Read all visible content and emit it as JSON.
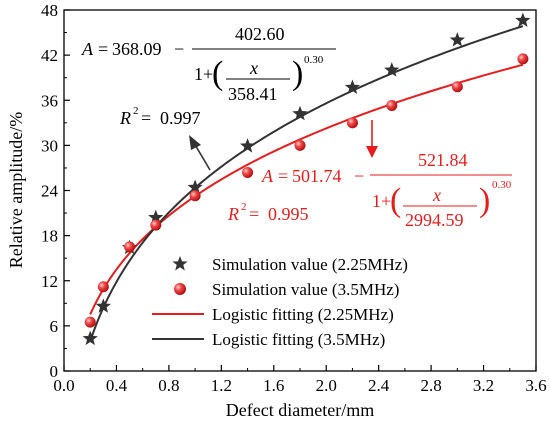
{
  "chart_data": {
    "type": "scatter",
    "title": "",
    "xlabel": "Defect diameter/mm",
    "ylabel": "Relative amplitude/%",
    "xlim": [
      0.0,
      3.6
    ],
    "ylim": [
      0,
      48
    ],
    "xticks": [
      "0.0",
      "0.4",
      "0.8",
      "1.2",
      "1.6",
      "2.0",
      "2.4",
      "2.8",
      "3.2",
      "3.6"
    ],
    "yticks": [
      "0",
      "6",
      "12",
      "18",
      "24",
      "30",
      "36",
      "42",
      "48"
    ],
    "grid": false,
    "legend_position": "bottom-right",
    "series": [
      {
        "name": "Simulation value (2.25MHz)",
        "marker": "star",
        "color": "#333333",
        "x": [
          0.2,
          0.3,
          0.5,
          0.7,
          1.0,
          1.4,
          1.8,
          2.2,
          2.5,
          3.0,
          3.5
        ],
        "y": [
          4.3,
          8.6,
          16.4,
          20.4,
          24.4,
          29.9,
          34.2,
          37.7,
          40.0,
          44.0,
          46.6
        ]
      },
      {
        "name": "Simulation value (3.5MHz)",
        "marker": "sphere",
        "color": "#e81c1c",
        "x": [
          0.2,
          0.3,
          0.5,
          0.7,
          1.0,
          1.4,
          1.8,
          2.2,
          2.5,
          3.0,
          3.5
        ],
        "y": [
          6.5,
          11.2,
          16.5,
          19.4,
          23.3,
          26.4,
          30.0,
          33.0,
          35.3,
          37.8,
          41.5
        ]
      },
      {
        "name": "Logistic fitting (2.25MHz)",
        "type": "line",
        "color": "#e81c1c",
        "formula": {
          "A1": 501.74,
          "A2": 521.84,
          "x0": 2994.59,
          "p": 0.3
        }
      },
      {
        "name": "Logistic fitting (3.5MHz)",
        "type": "line",
        "color": "#333333",
        "formula": {
          "A1": 368.09,
          "A2": 402.6,
          "x0": 358.41,
          "p": 0.3
        }
      }
    ],
    "annotations": {
      "black_eq": {
        "A1": "368.09",
        "A2": "402.60",
        "x0": "358.41",
        "p": "0.30",
        "r2": "0.997"
      },
      "red_eq": {
        "A1": "501.74",
        "A2": "521.84",
        "x0": "2994.59",
        "p": "0.30",
        "r2": "0.995"
      },
      "colors": {
        "black": "#333333",
        "red": "#e81c1c"
      }
    }
  }
}
